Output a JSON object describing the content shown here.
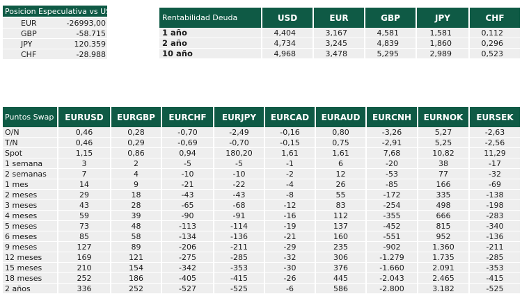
{
  "speculative": {
    "title": "Posicion Especulativa vs USD",
    "rows": [
      {
        "label": "EUR",
        "value": "-26993,00"
      },
      {
        "label": "GBP",
        "value": "-58.715"
      },
      {
        "label": "JPY",
        "value": "120.359"
      },
      {
        "label": "CHF",
        "value": "-28.988"
      }
    ]
  },
  "debt": {
    "title": "Rentabilidad Deuda",
    "columns": [
      "USD",
      "EUR",
      "GBP",
      "JPY",
      "CHF"
    ],
    "rows": [
      {
        "label": "1 año",
        "values": [
          "4,404",
          "3,167",
          "4,581",
          "1,581",
          "0,112"
        ]
      },
      {
        "label": "2 año",
        "values": [
          "4,734",
          "3,245",
          "4,839",
          "1,860",
          "0,296"
        ]
      },
      {
        "label": "10 año",
        "values": [
          "4,968",
          "3,478",
          "5,295",
          "2,989",
          "0,523"
        ]
      }
    ]
  },
  "swap": {
    "title": "Puntos Swap",
    "columns": [
      "EURUSD",
      "EURGBP",
      "EURCHF",
      "EURJPY",
      "EURCAD",
      "EURAUD",
      "EURCNH",
      "EURNOK",
      "EURSEK"
    ],
    "rows": [
      {
        "label": "O/N",
        "values": [
          "0,46",
          "0,28",
          "-0,70",
          "-2,49",
          "-0,16",
          "0,80",
          "-3,26",
          "5,27",
          "-2,63"
        ]
      },
      {
        "label": "T/N",
        "values": [
          "0,46",
          "0,29",
          "-0,69",
          "-0,70",
          "-0,15",
          "0,75",
          "-2,91",
          "5,25",
          "-2,56"
        ]
      },
      {
        "label": "Spot",
        "values": [
          "1,15",
          "0,86",
          "0,94",
          "180,20",
          "1,61",
          "1,61",
          "7,68",
          "10,82",
          "11,29"
        ]
      },
      {
        "label": "1 semana",
        "values": [
          "3",
          "2",
          "-5",
          "-5",
          "-1",
          "6",
          "-20",
          "38",
          "-17"
        ]
      },
      {
        "label": "2 semanas",
        "values": [
          "7",
          "4",
          "-10",
          "-10",
          "-2",
          "12",
          "-53",
          "77",
          "-32"
        ]
      },
      {
        "label": "1 mes",
        "values": [
          "14",
          "9",
          "-21",
          "-22",
          "-4",
          "26",
          "-85",
          "166",
          "-69"
        ]
      },
      {
        "label": "2 meses",
        "values": [
          "29",
          "18",
          "-43",
          "-43",
          "-8",
          "55",
          "-172",
          "335",
          "-138"
        ]
      },
      {
        "label": "3 meses",
        "values": [
          "43",
          "28",
          "-65",
          "-68",
          "-12",
          "83",
          "-254",
          "498",
          "-198"
        ]
      },
      {
        "label": "4 meses",
        "values": [
          "59",
          "39",
          "-90",
          "-91",
          "-16",
          "112",
          "-355",
          "666",
          "-283"
        ]
      },
      {
        "label": "5 meses",
        "values": [
          "73",
          "48",
          "-113",
          "-114",
          "-19",
          "137",
          "-452",
          "815",
          "-340"
        ]
      },
      {
        "label": "6 meses",
        "values": [
          "85",
          "58",
          "-134",
          "-136",
          "-21",
          "160",
          "-551",
          "952",
          "-136"
        ]
      },
      {
        "label": "9 meses",
        "values": [
          "127",
          "89",
          "-206",
          "-211",
          "-29",
          "235",
          "-902",
          "1.360",
          "-211"
        ]
      },
      {
        "label": "12 meses",
        "values": [
          "169",
          "121",
          "-275",
          "-285",
          "-32",
          "306",
          "-1.279",
          "1.735",
          "-285"
        ]
      },
      {
        "label": "15 meses",
        "values": [
          "210",
          "154",
          "-342",
          "-353",
          "-30",
          "376",
          "-1.660",
          "2.091",
          "-353"
        ]
      },
      {
        "label": "18 meses",
        "values": [
          "252",
          "186",
          "-405",
          "-415",
          "-26",
          "445",
          "-2.043",
          "2.465",
          "-415"
        ]
      },
      {
        "label": "2 años",
        "values": [
          "336",
          "252",
          "-527",
          "-525",
          "-6",
          "586",
          "-2.800",
          "3.182",
          "-525"
        ]
      }
    ]
  }
}
